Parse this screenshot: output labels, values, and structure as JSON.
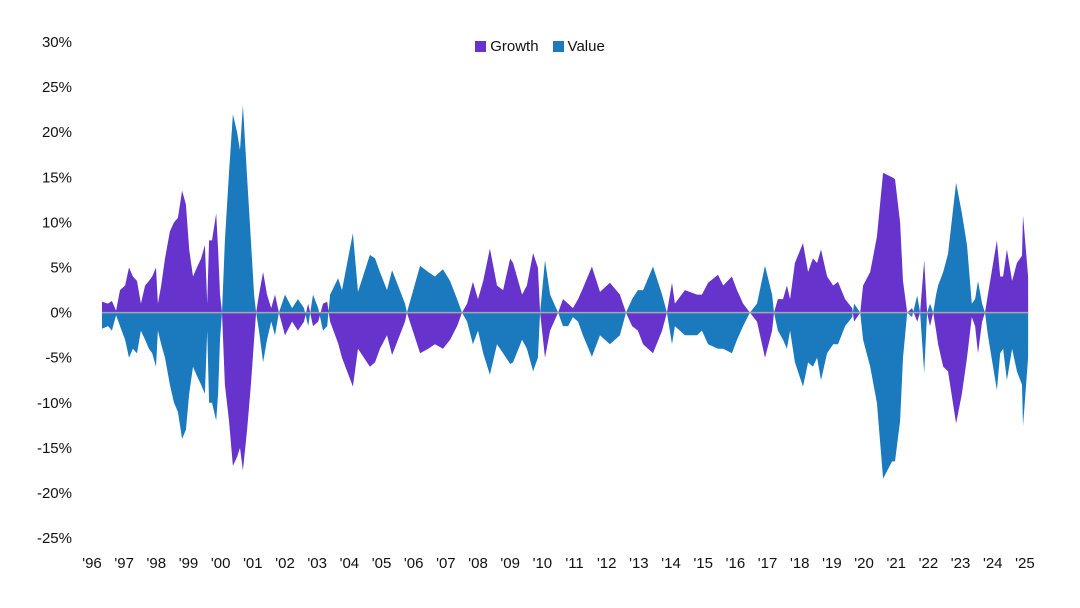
{
  "chart_data": {
    "type": "area",
    "title": "",
    "xlabel": "",
    "ylabel": "",
    "ylim": [
      -25,
      30
    ],
    "yticks": [
      "30%",
      "25%",
      "20%",
      "15%",
      "10%",
      "5%",
      "0%",
      "-5%",
      "-10%",
      "-15%",
      "-20%",
      "-25%"
    ],
    "ytick_values": [
      30,
      25,
      20,
      15,
      10,
      5,
      0,
      -5,
      -10,
      -15,
      -20,
      -25
    ],
    "xticks": [
      "'96",
      "'97",
      "'98",
      "'99",
      "'00",
      "'01",
      "'02",
      "'03",
      "'04",
      "'05",
      "'06",
      "'07",
      "'08",
      "'09",
      "'10",
      "'11",
      "'12",
      "'13",
      "'14",
      "'15",
      "'16",
      "'17",
      "'18",
      "'19",
      "'20",
      "'21",
      "'22",
      "'23",
      "'24",
      "'25"
    ],
    "xtick_values": [
      1996,
      1997,
      1998,
      1999,
      2000,
      2001,
      2002,
      2003,
      2004,
      2005,
      2006,
      2007,
      2008,
      2009,
      2010,
      2011,
      2012,
      2013,
      2014,
      2015,
      2016,
      2017,
      2018,
      2019,
      2020,
      2021,
      2022,
      2023,
      2024,
      2025
    ],
    "grid": false,
    "legend_position": "top-center",
    "x": [
      1996.31,
      1996.5,
      1996.62,
      1996.75,
      1996.87,
      1997.03,
      1997.15,
      1997.27,
      1997.4,
      1997.52,
      1997.65,
      1997.77,
      1997.87,
      1997.99,
      1998.05,
      1998.15,
      1998.27,
      1998.42,
      1998.55,
      1998.67,
      1998.8,
      1998.92,
      1999.02,
      1999.14,
      1999.26,
      1999.39,
      1999.51,
      1999.58,
      1999.64,
      1999.73,
      1999.86,
      1999.92,
      1999.98,
      2000.04,
      2000.13,
      2000.26,
      2000.38,
      2000.51,
      2000.6,
      2000.69,
      2000.82,
      2000.94,
      2001.04,
      2001.1,
      2001.19,
      2001.32,
      2001.44,
      2001.57,
      2001.69,
      2001.81,
      2002.0,
      2002.22,
      2002.4,
      2002.59,
      2002.72,
      2002.87,
      2003.03,
      2003.18,
      2003.31,
      2003.4,
      2003.65,
      2003.77,
      2004.11,
      2004.27,
      2004.64,
      2004.8,
      2004.95,
      2005.17,
      2005.33,
      2005.73,
      2005.79,
      2006.2,
      2006.45,
      2006.66,
      2006.91,
      2007.13,
      2007.35,
      2007.5,
      2007.66,
      2007.84,
      2008.0,
      2008.16,
      2008.37,
      2008.59,
      2008.78,
      2009.0,
      2009.09,
      2009.37,
      2009.52,
      2009.71,
      2009.86,
      2009.93,
      2010.08,
      2010.24,
      2010.49,
      2010.64,
      2010.8,
      2010.95,
      2011.11,
      2011.26,
      2011.54,
      2011.79,
      2012.1,
      2012.41,
      2012.6,
      2012.79,
      2012.97,
      2013.13,
      2013.44,
      2013.72,
      2013.87,
      2014.03,
      2014.12,
      2014.43,
      2014.81,
      2014.96,
      2015.15,
      2015.46,
      2015.62,
      2015.89,
      2016.05,
      2016.24,
      2016.45,
      2016.67,
      2016.92,
      2017.14,
      2017.2,
      2017.32,
      2017.48,
      2017.6,
      2017.7,
      2017.85,
      2018.1,
      2018.26,
      2018.41,
      2018.54,
      2018.66,
      2018.85,
      2019.04,
      2019.19,
      2019.41,
      2019.63,
      2019.69,
      2019.88,
      2019.97,
      2020.19,
      2020.4,
      2020.59,
      2020.87,
      2020.96,
      2021.12,
      2021.21,
      2021.34,
      2021.49,
      2021.65,
      2021.74,
      2021.87,
      2021.96,
      2022.05,
      2022.15,
      2022.24,
      2022.3,
      2022.46,
      2022.61,
      2022.86,
      2023.04,
      2023.2,
      2023.35,
      2023.45,
      2023.54,
      2023.67,
      2023.76,
      2023.85,
      2024.13,
      2024.23,
      2024.32,
      2024.44,
      2024.6,
      2024.75,
      2024.91,
      2024.94,
      2025.1
    ],
    "series": [
      {
        "name": "Growth",
        "color": "#6633CC",
        "values": [
          1.2,
          1.0,
          1.3,
          0.2,
          2.5,
          3,
          5,
          4,
          3.5,
          1,
          3,
          3.5,
          4,
          5,
          1,
          3,
          6,
          9,
          10,
          10.5,
          13.5,
          12,
          7,
          4,
          5,
          6,
          7.5,
          1,
          8,
          8,
          11,
          7,
          2,
          0,
          -8,
          -12,
          -17,
          -16,
          -15,
          -17.5,
          -13,
          -8,
          -3,
          0,
          2,
          4.5,
          2,
          0.5,
          2,
          0,
          -2.5,
          -1,
          -2,
          -1,
          1,
          -1.5,
          -1,
          1,
          1.2,
          -1,
          -3.4,
          -5,
          -8.2,
          -4,
          -6,
          -5.5,
          -4,
          -2.5,
          -4.7,
          -1,
          0,
          -4.5,
          -4,
          -3.5,
          -4,
          -3,
          -1.5,
          0,
          1,
          3.4,
          1.5,
          3.5,
          7.1,
          3,
          2.5,
          6,
          5.5,
          2,
          3,
          6.6,
          5,
          0,
          -5,
          -2,
          0,
          1.5,
          1,
          0.5,
          1.5,
          2.7,
          5.1,
          2.3,
          3.3,
          2,
          0,
          -1.5,
          -2,
          -3.5,
          -4.5,
          -2,
          0,
          3.3,
          1,
          2.5,
          2,
          2,
          3.3,
          4.2,
          3,
          4,
          2.5,
          1,
          0,
          -1,
          -5,
          -2,
          0,
          1.5,
          1.5,
          3,
          1.5,
          5.5,
          7.7,
          4.5,
          6,
          5.5,
          7,
          4,
          3,
          3.4,
          1.5,
          0.5,
          -1,
          0,
          3,
          4.5,
          8.4,
          15.5,
          15,
          14.8,
          10,
          3.5,
          0,
          0.5,
          -1,
          0,
          5.8,
          0,
          -1.5,
          0,
          -2,
          -3.5,
          -6,
          -6.5,
          -12.3,
          -9,
          -5,
          -0.5,
          -1.5,
          -4.5,
          -1,
          0,
          2,
          8,
          4,
          4,
          7,
          3.5,
          5.5,
          6.3,
          10.8,
          4
        ]
      },
      {
        "name": "Value",
        "color": "#1A7ABD",
        "values": [
          -1.8,
          -1.5,
          -2,
          -0.3,
          -1.5,
          -3,
          -5,
          -4,
          -4.5,
          -2,
          -3,
          -4,
          -4.5,
          -6,
          -2,
          -3.5,
          -5,
          -8,
          -10,
          -11,
          -14,
          -13,
          -9,
          -6,
          -7,
          -8,
          -9,
          -2,
          -10,
          -10,
          -12,
          -9,
          -3,
          0,
          8,
          15.5,
          22,
          20,
          18,
          23,
          15,
          8,
          2,
          0,
          -2,
          -5.5,
          -3,
          -1,
          -2.5,
          0,
          2,
          0.5,
          1.5,
          0.5,
          -1.5,
          2,
          0.5,
          -2,
          -1.5,
          2,
          3.8,
          2.5,
          8.8,
          2.3,
          6.4,
          6,
          4.5,
          2.5,
          4.7,
          1,
          0,
          5.2,
          4.5,
          4,
          4.8,
          3.5,
          1.5,
          0,
          -1,
          -3.5,
          -2,
          -4.5,
          -6.9,
          -3.5,
          -4.5,
          -5.7,
          -5.5,
          -3,
          -4,
          -6.5,
          -5,
          0,
          5.8,
          2,
          0,
          -1.5,
          -1.5,
          -0.5,
          -1,
          -2.5,
          -4.9,
          -2.5,
          -3.5,
          -2.5,
          0,
          1.5,
          2.5,
          2.5,
          5.1,
          2,
          0,
          -3.5,
          -1.5,
          -2.5,
          -2.5,
          -2,
          -3.5,
          -4,
          -4,
          -4.5,
          -3,
          -1.5,
          0,
          1,
          5.2,
          2,
          0,
          -2,
          -3,
          -4,
          -2,
          -5.5,
          -8.2,
          -5.5,
          -6,
          -5,
          -7.5,
          -4.5,
          -3.5,
          -3.5,
          -1.5,
          -0.5,
          1,
          0,
          -3,
          -6,
          -10,
          -18.4,
          -16.5,
          -16.5,
          -12,
          -5,
          0,
          -0.5,
          1.9,
          0,
          -6.7,
          0,
          1,
          0,
          2,
          3,
          4.5,
          6.5,
          14.4,
          11,
          7.5,
          1,
          1.5,
          3.5,
          1,
          0,
          -2.5,
          -8.6,
          -4.5,
          -4,
          -7.5,
          -4,
          -6.5,
          -8,
          -12.6,
          -5
        ]
      }
    ],
    "zero_line_color": "#A6A6A6"
  }
}
